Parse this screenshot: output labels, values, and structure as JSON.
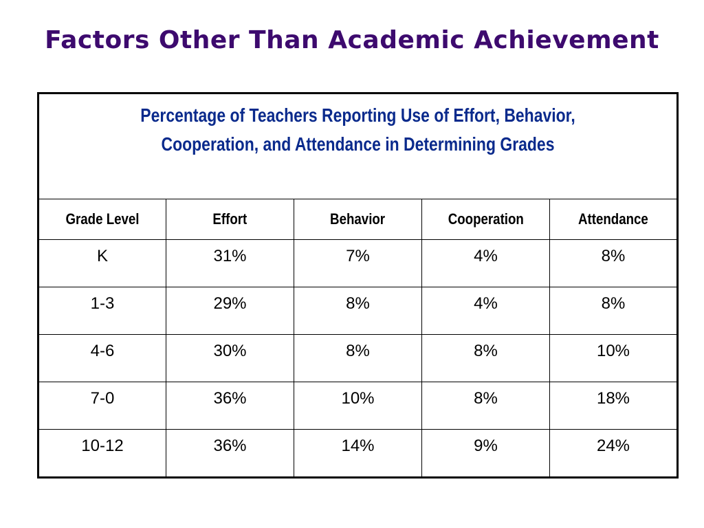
{
  "title": "Factors Other Than Academic Achievement",
  "table": {
    "caption_line1": "Percentage of Teachers Reporting Use of Effort, Behavior,",
    "caption_line2": "Cooperation, and Attendance in Determining Grades",
    "headers": [
      "Grade Level",
      "Effort",
      "Behavior",
      "Cooperation",
      "Attendance"
    ],
    "rows": [
      [
        "K",
        "31%",
        "7%",
        "4%",
        "8%"
      ],
      [
        "1-3",
        "29%",
        "8%",
        "4%",
        "8%"
      ],
      [
        "4-6",
        "30%",
        "8%",
        "8%",
        "10%"
      ],
      [
        "7-0",
        "36%",
        "10%",
        "8%",
        "18%"
      ],
      [
        "10-12",
        "36%",
        "14%",
        "9%",
        "24%"
      ]
    ]
  },
  "colors": {
    "title": "#3d0a6e",
    "caption": "#0a2a8c",
    "border": "#000000"
  }
}
